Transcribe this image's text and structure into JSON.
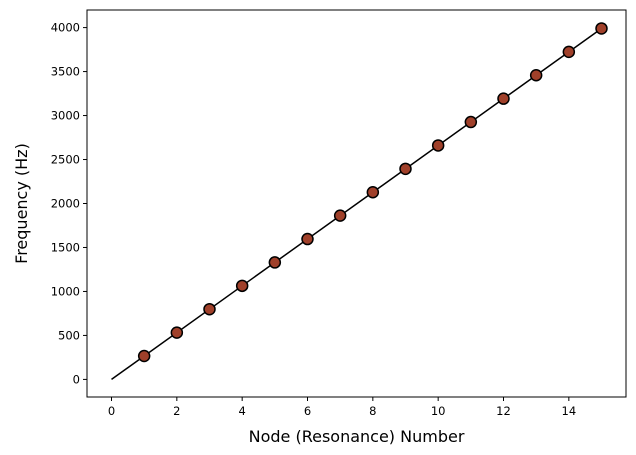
{
  "chart_data": {
    "type": "scatter",
    "title": "",
    "xlabel": "Node (Resonance) Number",
    "ylabel": "Frequency (Hz)",
    "xlim": [
      -0.75,
      15.75
    ],
    "ylim": [
      -200,
      4200
    ],
    "xticks": [
      0,
      2,
      4,
      6,
      8,
      10,
      12,
      14
    ],
    "yticks": [
      0,
      500,
      1000,
      1500,
      2000,
      2500,
      3000,
      3500,
      4000
    ],
    "grid": false,
    "legend": "none",
    "series": [
      {
        "kind": "points",
        "color": "#a0402a",
        "edge_color": "#000000",
        "x": [
          1,
          2,
          3,
          4,
          5,
          6,
          7,
          8,
          9,
          10,
          11,
          12,
          13,
          14,
          15
        ],
        "y": [
          266,
          532,
          798,
          1064,
          1330,
          1596,
          1862,
          2128,
          2394,
          2660,
          2926,
          3192,
          3458,
          3724,
          3990
        ]
      },
      {
        "kind": "line",
        "color": "#000000",
        "x": [
          0,
          15
        ],
        "y": [
          0,
          3990
        ]
      }
    ]
  }
}
